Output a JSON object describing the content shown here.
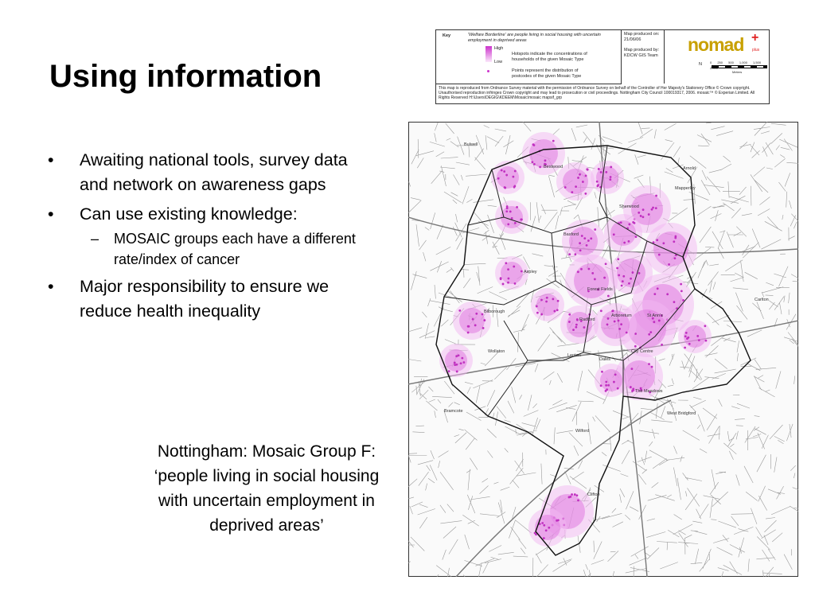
{
  "header": {
    "title": "Using information"
  },
  "bullets": [
    {
      "text": "Awaiting national tools, survey data and network on awareness gaps"
    },
    {
      "text": "Can use existing knowledge:",
      "sub": [
        "MOSAIC groups each have a different rate/index of cancer"
      ]
    },
    {
      "text": "Major responsibility to ensure we reduce health inequality"
    }
  ],
  "caption": "Nottingham: Mosaic Group F: ‘people living in social housing with uncertain employment in deprived areas’",
  "key": {
    "heading": "Key",
    "description": "'Welfare Borderline' are people living in social housing with uncertain employment in deprived areas",
    "high": "High",
    "low": "Low",
    "hotspots": "Hotspots indicate the concentrations of households of the given Mosaic Type",
    "points": "Points represent the distribution of postcodes of the given Mosaic Type",
    "produced_on": "Map produced on: 21/06/06",
    "produced_by": "Map produced by: KDCW GIS Team",
    "logo": "nomad",
    "logo_plus": "plus",
    "north": "N",
    "scale": "0 250 500 1,000 1,500 2,000",
    "scale_unit": "Meters",
    "footer": "This map is reproduced from Ordnance Survey material with the permission of Ordnance Survey on behalf of the Controller of Her Majesty's Stationery Office © Crown copyright. Unauthorised reproduction infringes Crown copyright and may lead to prosecution or civil proceedings. Nottingham City Council 100019317, 2006. mosaic™ © Experian Limited. All Rights Reserved H:\\Users\\DEGIG\\KDEEM\\Mosaic\\mosaic mapsif_grp"
  },
  "map": {
    "places": [
      "Bulwell",
      "Bestwood",
      "Basford",
      "Aspley",
      "Bilborough",
      "Sherwood",
      "Mapperley",
      "Forest Fields",
      "Radford",
      "Arboretum",
      "St Ann's",
      "Wollaton",
      "Lenton",
      "Dales",
      "City Centre",
      "The Meadows",
      "West Bridgford",
      "Wilford",
      "Clifton",
      "Bramcote",
      "Carlton",
      "Arnold"
    ]
  }
}
